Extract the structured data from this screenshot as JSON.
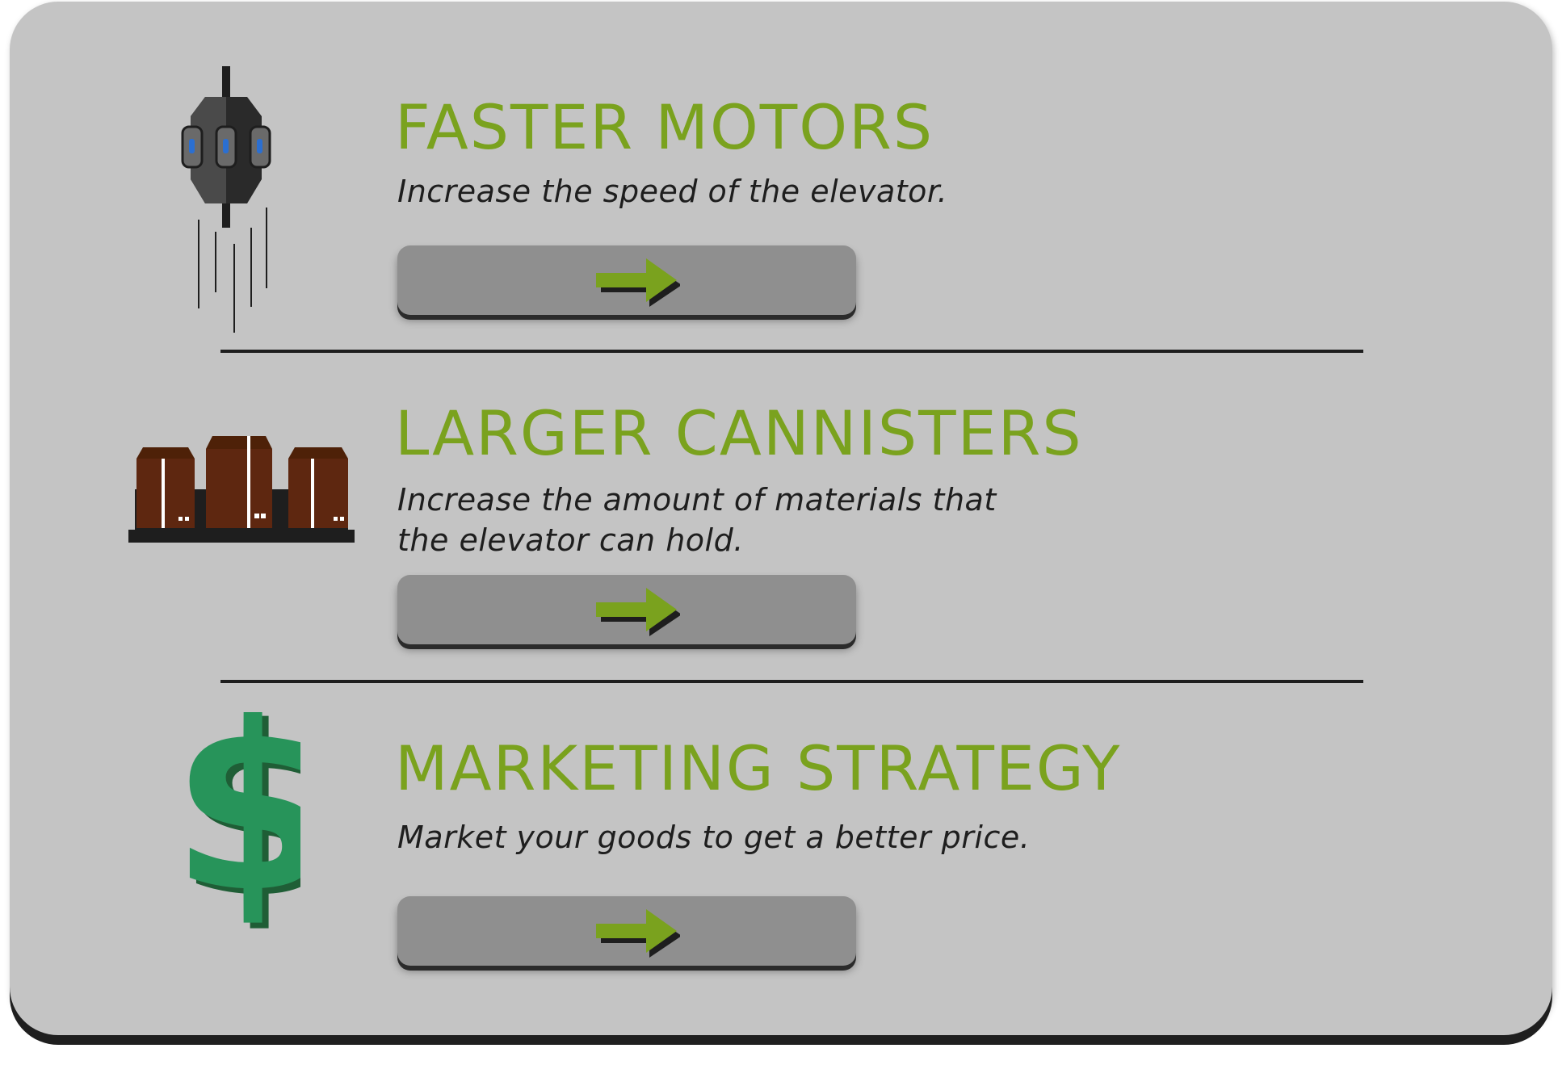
{
  "colors": {
    "panel_bg": "#c4c4c4",
    "title_green": "#7aa21e",
    "button_bg": "#8f8f8f",
    "arrow_green": "#7aa21e",
    "divider": "#1e1e1e"
  },
  "upgrades": [
    {
      "icon": "rocket-motor-icon",
      "title": "FASTER MOTORS",
      "description": "Increase the speed of the elevator.",
      "button_icon": "arrow-right-icon"
    },
    {
      "icon": "cargo-crates-icon",
      "title": "LARGER CANNISTERS",
      "description": "Increase the amount of materials that the elevator can hold.",
      "button_icon": "arrow-right-icon"
    },
    {
      "icon": "dollar-sign-icon",
      "title": "MARKETING STRATEGY",
      "description": "Market your goods to get a better price.",
      "button_icon": "arrow-right-icon"
    }
  ]
}
